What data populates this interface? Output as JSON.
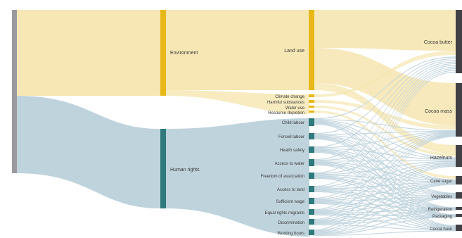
{
  "diagram": {
    "type": "sankey",
    "colors": {
      "root": "#9a9a9e",
      "environment": "#e8b818",
      "human_rights": "#2f7a7c",
      "target": "#404045",
      "env_flow": "#f6e7b4",
      "hr_flow": "#bfd3dd"
    },
    "nodes": {
      "environment": "Environment",
      "human_rights": "Human rights",
      "land_use": "Land use",
      "climate_change": "Climate change",
      "harmful_substances": "Harmful substances",
      "water_use": "Water use",
      "resource_depletion": "Resource depletion",
      "child_labour": "Child labour",
      "forced_labour": "Forced labour",
      "health_safety": "Health safety",
      "access_to_water": "Access to water",
      "freedom_of_association": "Freedom of association",
      "access_to_land": "Access to land",
      "sufficient_wage": "Sufficient wage",
      "equal_rights_migrants": "Equal rights migrants",
      "discrimination": "Discrimination",
      "working_hours": "Working hours",
      "cocoa_butter": "Cocoa butter",
      "cocoa_mass": "Cocoa mass",
      "hazelnuts": "Hazelnuts",
      "cane_sugar": "Cane sugar",
      "vegetables": "Vegetables",
      "refrigeration": "Refrigeration",
      "packaging": "Packaging",
      "cocoa_husk": "Cocoa husk"
    }
  }
}
